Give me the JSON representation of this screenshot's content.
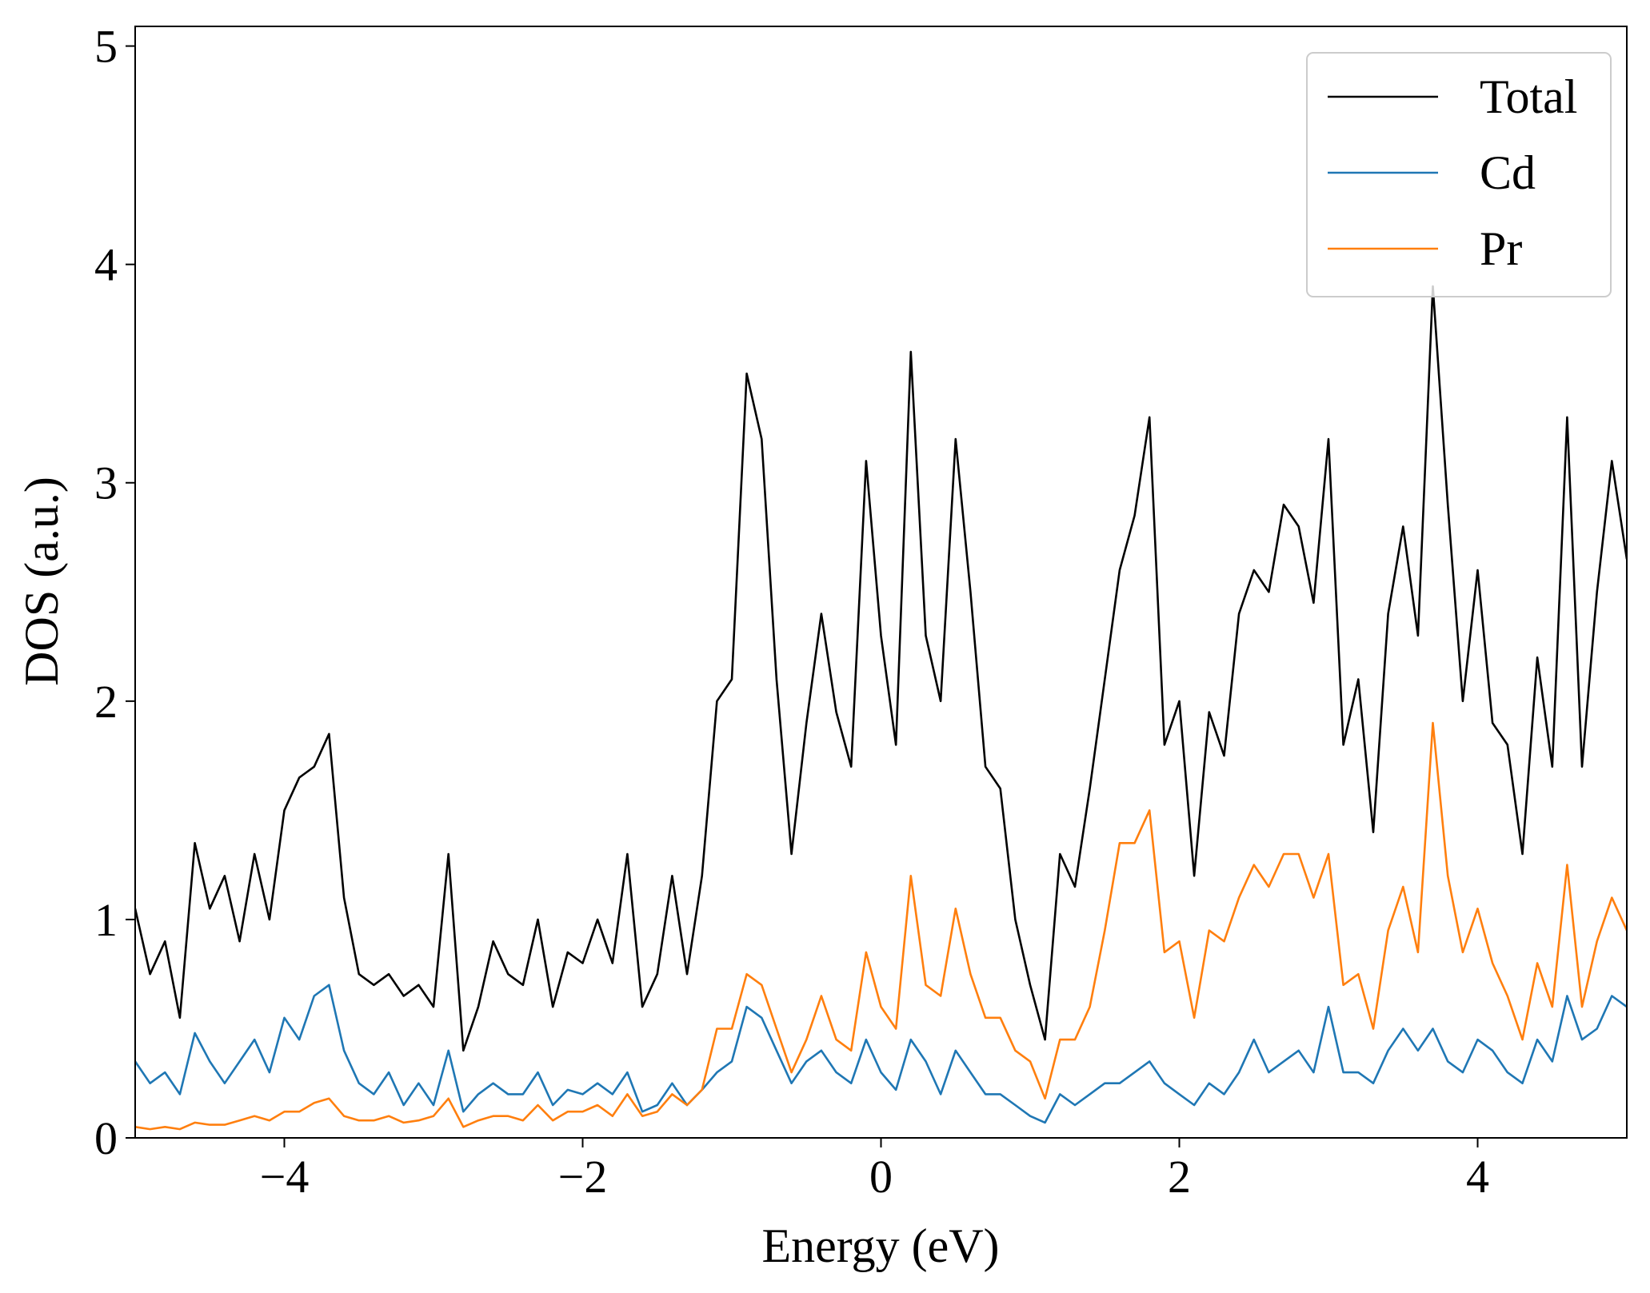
{
  "chart_data": {
    "type": "line",
    "xlabel": "Energy (eV)",
    "ylabel": "DOS (a.u.)",
    "x": [
      -5.0,
      -4.9,
      -4.8,
      -4.7,
      -4.6,
      -4.5,
      -4.4,
      -4.3,
      -4.2,
      -4.1,
      -4.0,
      -3.9,
      -3.8,
      -3.7,
      -3.6,
      -3.5,
      -3.4,
      -3.3,
      -3.2,
      -3.1,
      -3.0,
      -2.9,
      -2.8,
      -2.7,
      -2.6,
      -2.5,
      -2.4,
      -2.3,
      -2.2,
      -2.1,
      -2.0,
      -1.9,
      -1.8,
      -1.7,
      -1.6,
      -1.5,
      -1.4,
      -1.3,
      -1.2,
      -1.1,
      -1.0,
      -0.9,
      -0.8,
      -0.7,
      -0.6,
      -0.5,
      -0.4,
      -0.3,
      -0.2,
      -0.1,
      0.0,
      0.1,
      0.2,
      0.3,
      0.4,
      0.5,
      0.6,
      0.7,
      0.8,
      0.9,
      1.0,
      1.1,
      1.2,
      1.3,
      1.4,
      1.5,
      1.6,
      1.7,
      1.8,
      1.9,
      2.0,
      2.1,
      2.2,
      2.3,
      2.4,
      2.5,
      2.6,
      2.7,
      2.8,
      2.9,
      3.0,
      3.1,
      3.2,
      3.3,
      3.4,
      3.5,
      3.6,
      3.7,
      3.8,
      3.9,
      4.0,
      4.1,
      4.2,
      4.3,
      4.4,
      4.5,
      4.6,
      4.7,
      4.8,
      4.9,
      5.0
    ],
    "series": [
      {
        "name": "Total",
        "color": "#000000",
        "values": [
          1.05,
          0.75,
          0.9,
          0.55,
          1.35,
          1.05,
          1.2,
          0.9,
          1.3,
          1.0,
          1.5,
          1.65,
          1.7,
          1.85,
          1.1,
          0.75,
          0.7,
          0.75,
          0.65,
          0.7,
          0.6,
          1.3,
          0.4,
          0.6,
          0.9,
          0.75,
          0.7,
          1.0,
          0.6,
          0.85,
          0.8,
          1.0,
          0.8,
          1.3,
          0.6,
          0.75,
          1.2,
          0.75,
          1.2,
          2.0,
          2.1,
          3.5,
          3.2,
          2.1,
          1.3,
          1.9,
          2.4,
          1.95,
          1.7,
          3.1,
          2.3,
          1.8,
          3.6,
          2.3,
          2.0,
          3.2,
          2.5,
          1.7,
          1.6,
          1.0,
          0.7,
          0.45,
          1.3,
          1.15,
          1.6,
          2.1,
          2.6,
          2.85,
          3.3,
          1.8,
          2.0,
          1.2,
          1.95,
          1.75,
          2.4,
          2.6,
          2.5,
          2.9,
          2.8,
          2.45,
          3.2,
          1.8,
          2.1,
          1.4,
          2.4,
          2.8,
          2.3,
          3.9,
          2.9,
          2.0,
          2.6,
          1.9,
          1.8,
          1.3,
          2.2,
          1.7,
          3.3,
          1.7,
          2.5,
          3.1,
          2.65
        ]
      },
      {
        "name": "Cd",
        "color": "#1f77b4",
        "values": [
          0.35,
          0.25,
          0.3,
          0.2,
          0.48,
          0.35,
          0.25,
          0.35,
          0.45,
          0.3,
          0.55,
          0.45,
          0.65,
          0.7,
          0.4,
          0.25,
          0.2,
          0.3,
          0.15,
          0.25,
          0.15,
          0.4,
          0.12,
          0.2,
          0.25,
          0.2,
          0.2,
          0.3,
          0.15,
          0.22,
          0.2,
          0.25,
          0.2,
          0.3,
          0.12,
          0.15,
          0.25,
          0.15,
          0.22,
          0.3,
          0.35,
          0.6,
          0.55,
          0.4,
          0.25,
          0.35,
          0.4,
          0.3,
          0.25,
          0.45,
          0.3,
          0.22,
          0.45,
          0.35,
          0.2,
          0.4,
          0.3,
          0.2,
          0.2,
          0.15,
          0.1,
          0.07,
          0.2,
          0.15,
          0.2,
          0.25,
          0.25,
          0.3,
          0.35,
          0.25,
          0.2,
          0.15,
          0.25,
          0.2,
          0.3,
          0.45,
          0.3,
          0.35,
          0.4,
          0.3,
          0.6,
          0.3,
          0.3,
          0.25,
          0.4,
          0.5,
          0.4,
          0.5,
          0.35,
          0.3,
          0.45,
          0.4,
          0.3,
          0.25,
          0.45,
          0.35,
          0.65,
          0.45,
          0.5,
          0.65,
          0.6
        ]
      },
      {
        "name": "Pr",
        "color": "#ff7f0e",
        "values": [
          0.05,
          0.04,
          0.05,
          0.04,
          0.07,
          0.06,
          0.06,
          0.08,
          0.1,
          0.08,
          0.12,
          0.12,
          0.16,
          0.18,
          0.1,
          0.08,
          0.08,
          0.1,
          0.07,
          0.08,
          0.1,
          0.18,
          0.05,
          0.08,
          0.1,
          0.1,
          0.08,
          0.15,
          0.08,
          0.12,
          0.12,
          0.15,
          0.1,
          0.2,
          0.1,
          0.12,
          0.2,
          0.15,
          0.22,
          0.5,
          0.5,
          0.75,
          0.7,
          0.5,
          0.3,
          0.45,
          0.65,
          0.45,
          0.4,
          0.85,
          0.6,
          0.5,
          1.2,
          0.7,
          0.65,
          1.05,
          0.75,
          0.55,
          0.55,
          0.4,
          0.35,
          0.18,
          0.45,
          0.45,
          0.6,
          0.95,
          1.35,
          1.35,
          1.5,
          0.85,
          0.9,
          0.55,
          0.95,
          0.9,
          1.1,
          1.25,
          1.15,
          1.3,
          1.3,
          1.1,
          1.3,
          0.7,
          0.75,
          0.5,
          0.95,
          1.15,
          0.85,
          1.9,
          1.2,
          0.85,
          1.05,
          0.8,
          0.65,
          0.45,
          0.8,
          0.6,
          1.25,
          0.6,
          0.9,
          1.1,
          0.95
        ]
      }
    ],
    "xlim": [
      -5,
      5
    ],
    "ylim": [
      0,
      5.09
    ],
    "xticks": [
      {
        "value": -4,
        "label": "−4"
      },
      {
        "value": -2,
        "label": "−2"
      },
      0,
      2,
      4
    ],
    "yticks": [
      0,
      1,
      2,
      3,
      4,
      5
    ],
    "legend": "upper right",
    "grid": false
  }
}
